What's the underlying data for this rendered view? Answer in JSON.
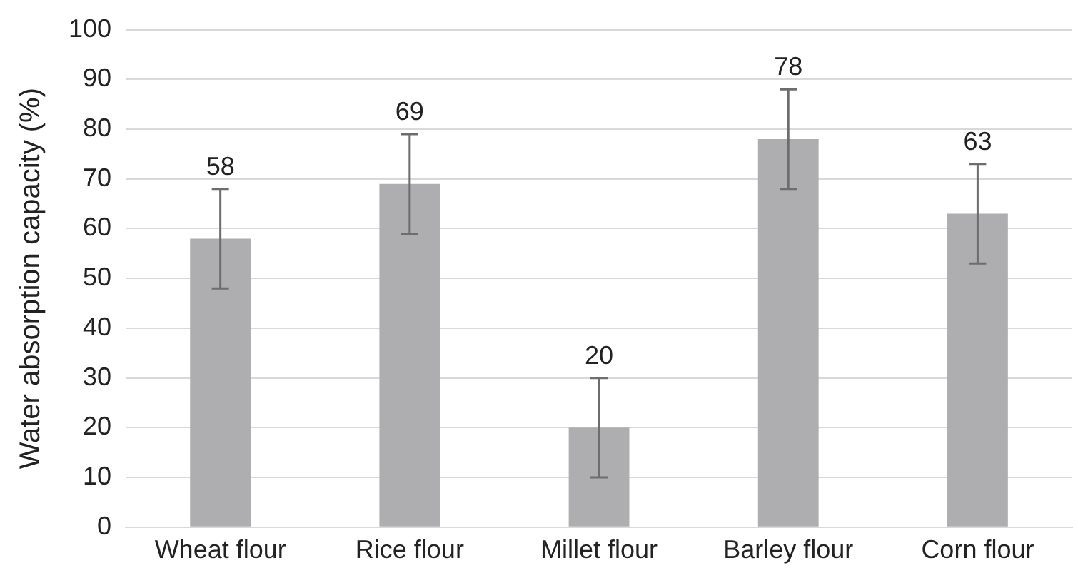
{
  "chart_data": {
    "type": "bar",
    "ylabel": "Water absorption capacity (%)",
    "categories": [
      "Wheat flour",
      "Rice flour",
      "Millet flour",
      "Barley flour",
      "Corn flour"
    ],
    "values": [
      58,
      69,
      20,
      78,
      63
    ],
    "errors": [
      10,
      10,
      10,
      10,
      10
    ],
    "color": "#aeaeb0",
    "ylim": [
      0,
      100
    ],
    "yticks": [
      0,
      10,
      20,
      30,
      40,
      50,
      60,
      70,
      80,
      90,
      100
    ],
    "grid": "y",
    "data_labels": true,
    "legend": false
  }
}
